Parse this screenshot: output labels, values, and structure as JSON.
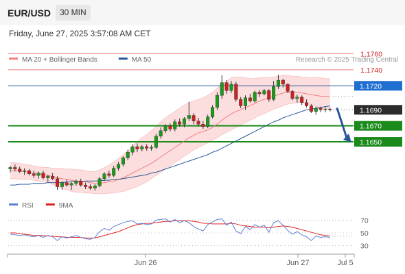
{
  "header": {
    "symbol": "EUR/USD",
    "timeframe": "30 MIN",
    "datetime": "Friday, June 27, 2025 3:57:08 AM CET"
  },
  "chart_data": [
    {
      "type": "candlestick",
      "title": "",
      "ylim": [
        1.1585,
        1.1775
      ],
      "legend": [
        {
          "name": "MA 20 + Bollinger Bands",
          "color": "#f08080"
        },
        {
          "name": "MA 50",
          "color": "#27579a"
        }
      ],
      "watermark": "Research © 2025 Trading Central",
      "candles": [
        [
          1.1616,
          1.162,
          1.1612,
          1.1618
        ],
        [
          1.1618,
          1.1622,
          1.1613,
          1.1616
        ],
        [
          1.1616,
          1.1619,
          1.1611,
          1.1613
        ],
        [
          1.1613,
          1.1617,
          1.1609,
          1.1614
        ],
        [
          1.1614,
          1.1616,
          1.1608,
          1.161
        ],
        [
          1.161,
          1.1614,
          1.1605,
          1.1608
        ],
        [
          1.1608,
          1.1613,
          1.1604,
          1.1611
        ],
        [
          1.1611,
          1.1614,
          1.1603,
          1.1605
        ],
        [
          1.1605,
          1.1609,
          1.16,
          1.1607
        ],
        [
          1.1607,
          1.1611,
          1.1602,
          1.1604
        ],
        [
          1.1604,
          1.1607,
          1.159,
          1.1594
        ],
        [
          1.1594,
          1.1601,
          1.159,
          1.1599
        ],
        [
          1.1599,
          1.1603,
          1.1594,
          1.1596
        ],
        [
          1.1596,
          1.16,
          1.159,
          1.1598
        ],
        [
          1.1598,
          1.1603,
          1.1595,
          1.1601
        ],
        [
          1.1601,
          1.1604,
          1.1594,
          1.1596
        ],
        [
          1.1596,
          1.1599,
          1.1591,
          1.1594
        ],
        [
          1.1594,
          1.1597,
          1.159,
          1.1592
        ],
        [
          1.1592,
          1.1597,
          1.1589,
          1.1595
        ],
        [
          1.1595,
          1.1606,
          1.1593,
          1.1604
        ],
        [
          1.1604,
          1.1612,
          1.1601,
          1.161
        ],
        [
          1.161,
          1.1614,
          1.1605,
          1.1608
        ],
        [
          1.1608,
          1.162,
          1.1606,
          1.1617
        ],
        [
          1.1617,
          1.1625,
          1.1614,
          1.1622
        ],
        [
          1.1622,
          1.1632,
          1.1619,
          1.163
        ],
        [
          1.163,
          1.164,
          1.1627,
          1.1637
        ],
        [
          1.1637,
          1.1647,
          1.1633,
          1.1644
        ],
        [
          1.1644,
          1.1648,
          1.1637,
          1.1641
        ],
        [
          1.1641,
          1.1646,
          1.1638,
          1.1644
        ],
        [
          1.1644,
          1.1647,
          1.1639,
          1.1642
        ],
        [
          1.1642,
          1.1646,
          1.1639,
          1.1643
        ],
        [
          1.1643,
          1.166,
          1.1641,
          1.1657
        ],
        [
          1.1657,
          1.1668,
          1.1654,
          1.1664
        ],
        [
          1.1664,
          1.1672,
          1.1661,
          1.167
        ],
        [
          1.167,
          1.1673,
          1.1663,
          1.1666
        ],
        [
          1.1666,
          1.1678,
          1.1663,
          1.1675
        ],
        [
          1.1675,
          1.1679,
          1.1669,
          1.1672
        ],
        [
          1.1672,
          1.1681,
          1.1668,
          1.1679
        ],
        [
          1.1679,
          1.17,
          1.1676,
          1.1683
        ],
        [
          1.1683,
          1.1686,
          1.1672,
          1.1676
        ],
        [
          1.1676,
          1.168,
          1.1669,
          1.1672
        ],
        [
          1.1672,
          1.1676,
          1.1666,
          1.1669
        ],
        [
          1.1669,
          1.1684,
          1.1667,
          1.1681
        ],
        [
          1.1681,
          1.1696,
          1.1679,
          1.1693
        ],
        [
          1.1693,
          1.1712,
          1.169,
          1.1708
        ],
        [
          1.1708,
          1.1733,
          1.1704,
          1.1724
        ],
        [
          1.1724,
          1.1727,
          1.171,
          1.1714
        ],
        [
          1.1714,
          1.1726,
          1.1711,
          1.1722
        ],
        [
          1.1722,
          1.1725,
          1.17,
          1.1703
        ],
        [
          1.1703,
          1.1706,
          1.1692,
          1.1695
        ],
        [
          1.1695,
          1.1708,
          1.169,
          1.1705
        ],
        [
          1.1705,
          1.171,
          1.1699,
          1.1701
        ],
        [
          1.1701,
          1.1714,
          1.1699,
          1.1712
        ],
        [
          1.1712,
          1.1715,
          1.1706,
          1.171
        ],
        [
          1.171,
          1.1716,
          1.1708,
          1.1714
        ],
        [
          1.1714,
          1.1716,
          1.17,
          1.1703
        ],
        [
          1.1703,
          1.1726,
          1.1701,
          1.1719
        ],
        [
          1.1719,
          1.1734,
          1.1716,
          1.1727
        ],
        [
          1.1727,
          1.1729,
          1.1718,
          1.1722
        ],
        [
          1.1722,
          1.1723,
          1.1711,
          1.1713
        ],
        [
          1.1713,
          1.1715,
          1.1702,
          1.1704
        ],
        [
          1.1704,
          1.1709,
          1.1699,
          1.1706
        ],
        [
          1.1706,
          1.1708,
          1.1696,
          1.1699
        ],
        [
          1.1699,
          1.1703,
          1.1693,
          1.1695
        ],
        [
          1.1695,
          1.1697,
          1.1686,
          1.1688
        ],
        [
          1.1688,
          1.1694,
          1.1684,
          1.1692
        ],
        [
          1.1692,
          1.1694,
          1.1687,
          1.169
        ],
        [
          1.169,
          1.1693,
          1.1687,
          1.1691
        ],
        [
          1.1691,
          1.1693,
          1.1688,
          1.169
        ]
      ],
      "ma20": [
        1.1614,
        1.1614,
        1.1613,
        1.1613,
        1.1612,
        1.1611,
        1.161,
        1.1609,
        1.1608,
        1.1607,
        1.1605,
        1.1604,
        1.1603,
        1.1602,
        1.1601,
        1.1601,
        1.16,
        1.1599,
        1.1598,
        1.1598,
        1.1599,
        1.16,
        1.1601,
        1.1603,
        1.1605,
        1.1608,
        1.1611,
        1.1614,
        1.1617,
        1.162,
        1.1623,
        1.1627,
        1.1631,
        1.1635,
        1.1639,
        1.1643,
        1.1647,
        1.1651,
        1.1655,
        1.1658,
        1.1661,
        1.1663,
        1.1665,
        1.1668,
        1.1672,
        1.1677,
        1.1681,
        1.1685,
        1.1688,
        1.169,
        1.1693,
        1.1695,
        1.1698,
        1.1701,
        1.1703,
        1.1705,
        1.1707,
        1.1709,
        1.1711,
        1.1712,
        1.1712,
        1.1712,
        1.1711,
        1.171,
        1.1709,
        1.1708,
        1.1707,
        1.1707,
        1.1706
      ],
      "bb_upper": [
        1.1624,
        1.1624,
        1.1623,
        1.1622,
        1.1621,
        1.162,
        1.1619,
        1.1618,
        1.1618,
        1.1617,
        1.1617,
        1.1617,
        1.1616,
        1.1616,
        1.1615,
        1.1615,
        1.1614,
        1.1613,
        1.1613,
        1.1615,
        1.1618,
        1.1621,
        1.1625,
        1.1629,
        1.1634,
        1.1639,
        1.1645,
        1.165,
        1.1655,
        1.1659,
        1.1664,
        1.1669,
        1.1675,
        1.168,
        1.1684,
        1.1688,
        1.1692,
        1.1696,
        1.1699,
        1.1701,
        1.1703,
        1.1705,
        1.1708,
        1.1712,
        1.1717,
        1.1722,
        1.1726,
        1.173,
        1.1731,
        1.1731,
        1.173,
        1.1729,
        1.1729,
        1.173,
        1.173,
        1.173,
        1.1731,
        1.1732,
        1.1733,
        1.1733,
        1.1732,
        1.1732,
        1.1731,
        1.1731,
        1.173,
        1.173,
        1.173,
        1.1729,
        1.1729
      ],
      "bb_lower": [
        1.1604,
        1.1604,
        1.1603,
        1.1603,
        1.1603,
        1.1602,
        1.1601,
        1.16,
        1.1599,
        1.1597,
        1.1594,
        1.1592,
        1.159,
        1.1588,
        1.1587,
        1.1587,
        1.1586,
        1.1586,
        1.1585,
        1.1585,
        1.1585,
        1.1586,
        1.1586,
        1.1587,
        1.1588,
        1.159,
        1.1592,
        1.1594,
        1.1597,
        1.16,
        1.1604,
        1.1608,
        1.1612,
        1.1616,
        1.162,
        1.1624,
        1.1628,
        1.1632,
        1.1636,
        1.164,
        1.1643,
        1.1646,
        1.1649,
        1.1652,
        1.1655,
        1.1659,
        1.1662,
        1.1665,
        1.1668,
        1.1671,
        1.1674,
        1.1677,
        1.168,
        1.1683,
        1.1685,
        1.1688,
        1.1691,
        1.1693,
        1.1695,
        1.1697,
        1.1698,
        1.1699,
        1.1699,
        1.1698,
        1.1696,
        1.1694,
        1.1693,
        1.1692,
        1.1691
      ],
      "ma50": [
        1.1596,
        1.1596,
        1.1597,
        1.1597,
        1.1597,
        1.1598,
        1.1598,
        1.1598,
        1.1599,
        1.1599,
        1.1599,
        1.1599,
        1.16,
        1.16,
        1.16,
        1.16,
        1.1601,
        1.1601,
        1.1601,
        1.1601,
        1.1602,
        1.1602,
        1.1603,
        1.1603,
        1.1604,
        1.1605,
        1.1606,
        1.1607,
        1.1608,
        1.1609,
        1.1611,
        1.1612,
        1.1614,
        1.1616,
        1.1618,
        1.162,
        1.1622,
        1.1624,
        1.1626,
        1.1628,
        1.163,
        1.1632,
        1.1634,
        1.1637,
        1.1639,
        1.1642,
        1.1645,
        1.1648,
        1.1651,
        1.1654,
        1.1657,
        1.166,
        1.1663,
        1.1666,
        1.1669,
        1.1672,
        1.1675,
        1.1677,
        1.168,
        1.1682,
        1.1684,
        1.1686,
        1.1688,
        1.169,
        1.1691,
        1.1692,
        1.1693,
        1.1694,
        1.1695
      ],
      "levels": [
        {
          "value": 1.176,
          "label": "1.1760",
          "kind": "resistance"
        },
        {
          "value": 1.174,
          "label": "1.1740",
          "kind": "resistance"
        },
        {
          "value": 1.172,
          "label": "1.1720",
          "kind": "pivot"
        },
        {
          "value": 1.169,
          "label": "1.1690",
          "kind": "current"
        },
        {
          "value": 1.167,
          "label": "1.1670",
          "kind": "support"
        },
        {
          "value": 1.165,
          "label": "1.1650",
          "kind": "support"
        }
      ],
      "arrow_direction": "down",
      "x_ticks": [
        "Jun 26",
        "Jun 27",
        "Jul 5"
      ]
    },
    {
      "type": "line",
      "title": "",
      "ylim": [
        20,
        80
      ],
      "y_ticks": [
        70,
        50,
        30
      ],
      "legend": [
        {
          "name": "RSI",
          "color": "#5b7fd6"
        },
        {
          "name": "9MA",
          "color": "#e02020"
        }
      ],
      "series": [
        {
          "name": "RSI",
          "values": [
            48,
            47,
            46,
            47,
            45,
            44,
            46,
            43,
            46,
            44,
            38,
            44,
            42,
            44,
            46,
            43,
            41,
            40,
            43,
            52,
            57,
            54,
            60,
            63,
            66,
            68,
            69,
            64,
            65,
            63,
            64,
            70,
            71,
            72,
            67,
            71,
            66,
            69,
            66,
            60,
            56,
            53,
            63,
            67,
            71,
            72,
            62,
            67,
            53,
            49,
            60,
            55,
            63,
            59,
            62,
            51,
            66,
            69,
            62,
            54,
            48,
            52,
            47,
            44,
            38,
            45,
            43,
            44,
            43
          ]
        },
        {
          "name": "9MA",
          "values": [
            50,
            50,
            49,
            48,
            47,
            46,
            46,
            46,
            45,
            45,
            44,
            44,
            43,
            43,
            43,
            43,
            42,
            42,
            42,
            44,
            46,
            48,
            50,
            52,
            55,
            58,
            61,
            63,
            64,
            65,
            65,
            66,
            67,
            68,
            68,
            69,
            69,
            69,
            69,
            68,
            67,
            65,
            65,
            64,
            64,
            64,
            64,
            65,
            64,
            62,
            61,
            60,
            59,
            59,
            59,
            58,
            59,
            60,
            61,
            60,
            59,
            57,
            55,
            53,
            51,
            49,
            47,
            46,
            45
          ]
        }
      ]
    }
  ]
}
